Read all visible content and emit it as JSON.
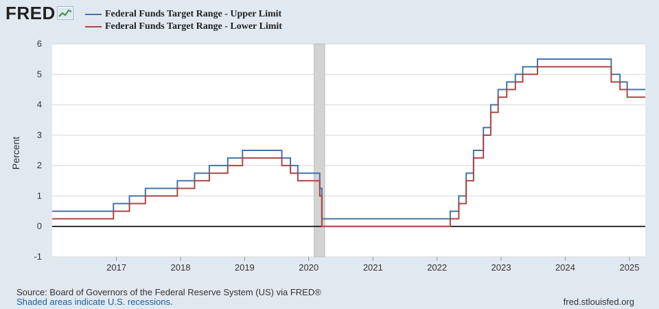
{
  "brand": {
    "logo_text": "FRED",
    "logo_icon": "fred-chart-icon"
  },
  "legend": [
    {
      "label": "Federal Funds Target Range - Upper Limit",
      "color": "#4572a7"
    },
    {
      "label": "Federal Funds Target Range - Lower Limit",
      "color": "#aa4643"
    }
  ],
  "footer": {
    "source": "Source: Board of Governors of the Federal Reserve System (US) via FRED®",
    "recession_note": "Shaded areas indicate U.S. recessions.",
    "site": "fred.stlouisfed.org"
  },
  "chart_data": {
    "type": "line",
    "step": true,
    "title": "",
    "xlabel": "",
    "ylabel": "Percent",
    "xlim": [
      "2016-01-01",
      "2025-04-01"
    ],
    "ylim": [
      -1,
      6
    ],
    "yticks": [
      -1,
      0,
      1,
      2,
      3,
      4,
      5,
      6
    ],
    "xticks": [
      "2017",
      "2018",
      "2019",
      "2020",
      "2021",
      "2022",
      "2023",
      "2024",
      "2025"
    ],
    "grid": true,
    "legend_position": "top-left",
    "zero_line": true,
    "recessions": [
      [
        "2020-02-01",
        "2020-04-01"
      ]
    ],
    "series": [
      {
        "name": "Federal Funds Target Range - Upper Limit",
        "color": "#4572a7",
        "dates": [
          "2016-01-01",
          "2016-12-15",
          "2017-03-16",
          "2017-06-15",
          "2017-12-14",
          "2018-03-22",
          "2018-06-14",
          "2018-09-27",
          "2018-12-20",
          "2019-08-01",
          "2019-09-19",
          "2019-10-31",
          "2020-03-04",
          "2020-03-16",
          "2022-03-17",
          "2022-05-05",
          "2022-06-16",
          "2022-07-28",
          "2022-09-22",
          "2022-11-03",
          "2022-12-15",
          "2023-02-02",
          "2023-03-23",
          "2023-05-04",
          "2023-07-27",
          "2024-09-19",
          "2024-11-08",
          "2024-12-19",
          "2025-04-01"
        ],
        "values": [
          0.5,
          0.75,
          1.0,
          1.25,
          1.5,
          1.75,
          2.0,
          2.25,
          2.5,
          2.25,
          2.0,
          1.75,
          1.25,
          0.25,
          0.5,
          1.0,
          1.75,
          2.5,
          3.25,
          4.0,
          4.5,
          4.75,
          5.0,
          5.25,
          5.5,
          5.0,
          4.75,
          4.5,
          4.5
        ]
      },
      {
        "name": "Federal Funds Target Range - Lower Limit",
        "color": "#aa4643",
        "dates": [
          "2016-01-01",
          "2016-12-15",
          "2017-03-16",
          "2017-06-15",
          "2017-12-14",
          "2018-03-22",
          "2018-06-14",
          "2018-09-27",
          "2018-12-20",
          "2019-08-01",
          "2019-09-19",
          "2019-10-31",
          "2020-03-04",
          "2020-03-16",
          "2022-03-17",
          "2022-05-05",
          "2022-06-16",
          "2022-07-28",
          "2022-09-22",
          "2022-11-03",
          "2022-12-15",
          "2023-02-02",
          "2023-03-23",
          "2023-05-04",
          "2023-07-27",
          "2024-09-19",
          "2024-11-08",
          "2024-12-19",
          "2025-04-01"
        ],
        "values": [
          0.25,
          0.5,
          0.75,
          1.0,
          1.25,
          1.5,
          1.75,
          2.0,
          2.25,
          2.0,
          1.75,
          1.5,
          1.0,
          0.0,
          0.25,
          0.75,
          1.5,
          2.25,
          3.0,
          3.75,
          4.25,
          4.5,
          4.75,
          5.0,
          5.25,
          4.75,
          4.5,
          4.25,
          4.25
        ]
      }
    ]
  }
}
